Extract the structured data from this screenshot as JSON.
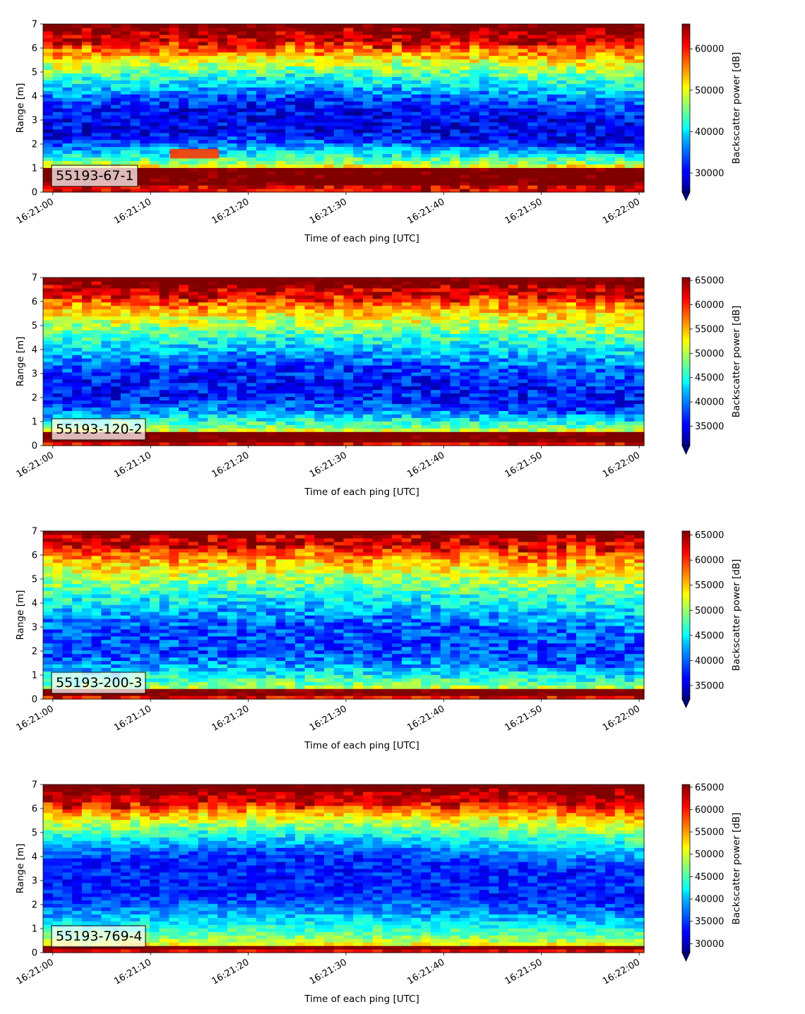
{
  "chart_data": [
    {
      "type": "heatmap",
      "label": "55193-67-1",
      "xlabel": "Time of each ping [UTC]",
      "ylabel": "Range [m]",
      "x_ticks": [
        "16:21:00",
        "16:21:10",
        "16:21:20",
        "16:21:30",
        "16:21:40",
        "16:21:50",
        "16:22:00"
      ],
      "xlim": [
        "16:20:59",
        "16:22:00.5"
      ],
      "y_ticks": [
        0,
        1,
        2,
        3,
        4,
        5,
        6,
        7
      ],
      "ylim": [
        0,
        7
      ],
      "colorbar": {
        "label": "Backscatter power [dB]",
        "ticks": [
          30000,
          40000,
          50000,
          60000
        ],
        "range": [
          25400,
          66000
        ],
        "colormap": "jet"
      },
      "profile": {
        "bottom_edge": 0.22,
        "near_band_top": 1.05,
        "dip_center": 3.0,
        "dip_value": 30000,
        "surface_start": 6.3,
        "noise": 4200
      },
      "feature_annotation_range": [
        1.4,
        1.8
      ]
    },
    {
      "type": "heatmap",
      "label": "55193-120-2",
      "xlabel": "Time of each ping [UTC]",
      "ylabel": "Range [m]",
      "x_ticks": [
        "16:21:00",
        "16:21:10",
        "16:21:20",
        "16:21:30",
        "16:21:40",
        "16:21:50",
        "16:22:00"
      ],
      "xlim": [
        "16:20:59",
        "16:22:00.5"
      ],
      "y_ticks": [
        0,
        1,
        2,
        3,
        4,
        5,
        6,
        7
      ],
      "ylim": [
        0,
        7
      ],
      "colorbar": {
        "label": "Backscatter power [dB]",
        "ticks": [
          35000,
          40000,
          45000,
          50000,
          55000,
          60000,
          65000
        ],
        "range": [
          31000,
          65600
        ],
        "colormap": "jet"
      },
      "profile": {
        "bottom_edge": 0.1,
        "near_band_top": 0.6,
        "dip_center": 2.5,
        "dip_value": 36000,
        "surface_start": 6.3,
        "noise": 3600
      }
    },
    {
      "type": "heatmap",
      "label": "55193-200-3",
      "xlabel": "Time of each ping [UTC]",
      "ylabel": "Range [m]",
      "x_ticks": [
        "16:21:00",
        "16:21:10",
        "16:21:20",
        "16:21:30",
        "16:21:40",
        "16:21:50",
        "16:22:00"
      ],
      "xlim": [
        "16:20:59",
        "16:22:00.5"
      ],
      "y_ticks": [
        0,
        1,
        2,
        3,
        4,
        5,
        6,
        7
      ],
      "ylim": [
        0,
        7
      ],
      "colorbar": {
        "label": "Backscatter power [dB]",
        "ticks": [
          35000,
          40000,
          45000,
          50000,
          55000,
          60000,
          65000
        ],
        "range": [
          32300,
          65800
        ],
        "colormap": "jet"
      },
      "profile": {
        "bottom_edge": 0.1,
        "near_band_top": 0.4,
        "dip_center": 2.5,
        "dip_value": 39000,
        "surface_start": 6.4,
        "noise": 3600
      }
    },
    {
      "type": "heatmap",
      "label": "55193-769-4",
      "xlabel": "Time of each ping [UTC]",
      "ylabel": "Range [m]",
      "x_ticks": [
        "16:21:00",
        "16:21:10",
        "16:21:20",
        "16:21:30",
        "16:21:40",
        "16:21:50",
        "16:22:00"
      ],
      "xlim": [
        "16:20:59",
        "16:22:00.5"
      ],
      "y_ticks": [
        0,
        1,
        2,
        3,
        4,
        5,
        6,
        7
      ],
      "ylim": [
        0,
        7
      ],
      "colorbar": {
        "label": "Backscatter power [dB]",
        "ticks": [
          30000,
          35000,
          40000,
          45000,
          50000,
          55000,
          60000,
          65000
        ],
        "range": [
          28000,
          65600
        ],
        "colormap": "jet"
      },
      "profile": {
        "bottom_edge": 0.1,
        "near_band_top": 0.3,
        "dip_center": 3.5,
        "dip_value": 34000,
        "surface_start": 6.3,
        "noise": 3000
      }
    }
  ]
}
